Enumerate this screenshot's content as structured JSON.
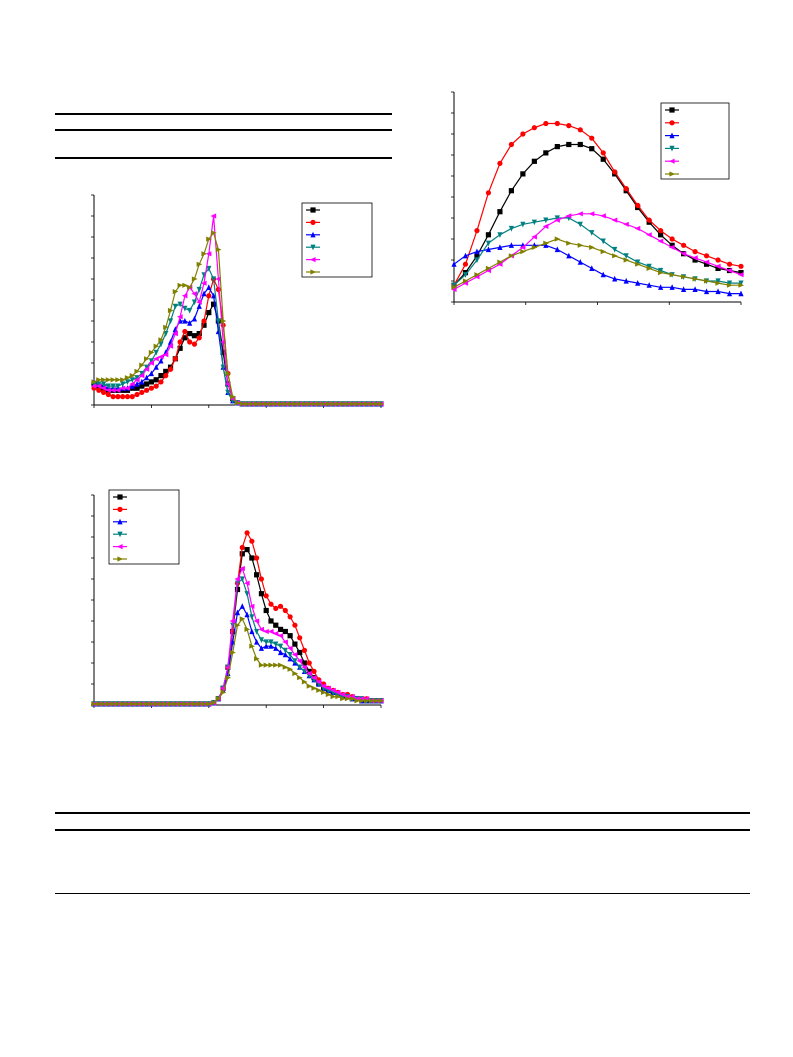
{
  "page": {
    "background": "#ffffff"
  },
  "tables": [
    {
      "name": "table-top",
      "rows": []
    },
    {
      "name": "table-bottom",
      "rows": []
    }
  ],
  "chart_data": [
    {
      "id": "chart-a",
      "type": "line",
      "title": "",
      "xlabel": "",
      "ylabel": "",
      "x": [
        0,
        1,
        2,
        3,
        4,
        5,
        6,
        7,
        8,
        9,
        10,
        11,
        12,
        13,
        14,
        15,
        16,
        17,
        18,
        19,
        20,
        21,
        22,
        23,
        24,
        25,
        26,
        27,
        28,
        29,
        30,
        31,
        32,
        33,
        34,
        35,
        36,
        37,
        38,
        39,
        40,
        41,
        42,
        43,
        44,
        45,
        46,
        47,
        48,
        49,
        50,
        51,
        52,
        53,
        54,
        55,
        56,
        57,
        58,
        59,
        60
      ],
      "xlim": [
        0,
        60
      ],
      "ylim": [
        0,
        100
      ],
      "grid": false,
      "legend": "top-right",
      "series": [
        {
          "color": "#000000",
          "marker": "square",
          "values": [
            10,
            9,
            8,
            7,
            7,
            7,
            7,
            7,
            8,
            8,
            9,
            10,
            11,
            12,
            14,
            16,
            18,
            22,
            27,
            32,
            34,
            33,
            34,
            38,
            44,
            48,
            40,
            25,
            10,
            3,
            1,
            0.5,
            0.5,
            0.5,
            0.5,
            0.5,
            0.5,
            0.5,
            0.5,
            0.5,
            0.5,
            0.5,
            0.5,
            0.5,
            0.5,
            0.5,
            0.5,
            0.5,
            0.5,
            0.5,
            0.5,
            0.5,
            0.5,
            0.5,
            0.5,
            0.5,
            0.5,
            0.5,
            0.5,
            0.5,
            0.5
          ]
        },
        {
          "color": "#ff0000",
          "marker": "circle",
          "values": [
            8,
            7,
            6,
            5,
            4,
            4,
            4,
            4,
            4,
            5,
            6,
            7,
            8,
            9,
            11,
            14,
            17,
            22,
            30,
            35,
            30,
            29,
            32,
            40,
            52,
            60,
            55,
            38,
            15,
            3,
            1,
            0.5,
            0.5,
            0.5,
            0.5,
            0.5,
            0.5,
            0.5,
            0.5,
            0.5,
            0.5,
            0.5,
            0.5,
            0.5,
            0.5,
            0.5,
            0.5,
            0.5,
            0.5,
            0.5,
            0.5,
            0.5,
            0.5,
            0.5,
            0.5,
            0.5,
            0.5,
            0.5,
            0.5,
            0.5,
            0.5
          ]
        },
        {
          "color": "#0000ff",
          "marker": "triangle-up",
          "values": [
            11,
            10,
            9,
            8,
            8,
            8,
            8,
            8,
            9,
            10,
            11,
            13,
            15,
            18,
            21,
            25,
            30,
            36,
            40,
            40,
            39,
            41,
            47,
            53,
            56,
            52,
            35,
            18,
            6,
            2,
            1,
            0.5,
            0.5,
            0.5,
            0.5,
            0.5,
            0.5,
            0.5,
            0.5,
            0.5,
            0.5,
            0.5,
            0.5,
            0.5,
            0.5,
            0.5,
            0.5,
            0.5,
            0.5,
            0.5,
            0.5,
            0.5,
            0.5,
            0.5,
            0.5,
            0.5,
            0.5,
            0.5,
            0.5,
            0.5,
            0.5
          ]
        },
        {
          "color": "#008080",
          "marker": "triangle-down",
          "values": [
            10,
            10,
            10,
            9,
            9,
            9,
            10,
            11,
            12,
            13,
            15,
            18,
            21,
            25,
            29,
            34,
            40,
            47,
            48,
            46,
            45,
            49,
            55,
            62,
            65,
            60,
            40,
            18,
            6,
            2,
            1,
            0.5,
            0.5,
            0.5,
            0.5,
            0.5,
            0.5,
            0.5,
            0.5,
            0.5,
            0.5,
            0.5,
            0.5,
            0.5,
            0.5,
            0.5,
            0.5,
            0.5,
            0.5,
            0.5,
            0.5,
            0.5,
            0.5,
            0.5,
            0.5,
            0.5,
            0.5,
            0.5,
            0.5,
            0.5,
            0.5
          ]
        },
        {
          "color": "#ff00ff",
          "marker": "triangle-left",
          "values": [
            9,
            9,
            8,
            7,
            7,
            7,
            8,
            8,
            10,
            12,
            14,
            17,
            20,
            22,
            23,
            24,
            28,
            34,
            42,
            52,
            56,
            53,
            49,
            58,
            72,
            90,
            60,
            30,
            10,
            3,
            1,
            0.5,
            0.5,
            0.5,
            0.5,
            0.5,
            0.5,
            0.5,
            0.5,
            0.5,
            0.5,
            0.5,
            0.5,
            0.5,
            0.5,
            0.5,
            0.5,
            0.5,
            0.5,
            0.5,
            0.5,
            0.5,
            0.5,
            0.5,
            0.5,
            0.5,
            0.5,
            0.5,
            0.5,
            0.5,
            0.5
          ]
        },
        {
          "color": "#808000",
          "marker": "triangle-right",
          "values": [
            11,
            12,
            12,
            12,
            12,
            12,
            12,
            13,
            14,
            16,
            19,
            22,
            25,
            28,
            31,
            37,
            45,
            54,
            57,
            57,
            56,
            60,
            67,
            72,
            79,
            82,
            74,
            40,
            15,
            4,
            1,
            0.5,
            0.5,
            0.5,
            0.5,
            0.5,
            0.5,
            0.5,
            0.5,
            0.5,
            0.5,
            0.5,
            0.5,
            0.5,
            0.5,
            0.5,
            0.5,
            0.5,
            0.5,
            0.5,
            0.5,
            0.5,
            0.5,
            0.5,
            0.5,
            0.5,
            0.5,
            0.5,
            0.5,
            0.5,
            0.5
          ]
        }
      ]
    },
    {
      "id": "chart-b",
      "type": "line",
      "title": "",
      "xlabel": "",
      "ylabel": "",
      "x": [
        0,
        1,
        2,
        3,
        4,
        5,
        6,
        7,
        8,
        9,
        10,
        11,
        12,
        13,
        14,
        15,
        16,
        17,
        18,
        19,
        20,
        21,
        22,
        23,
        24,
        25,
        26,
        27,
        28,
        29,
        30,
        31,
        32,
        33,
        34,
        35,
        36,
        37,
        38,
        39,
        40,
        41,
        42,
        43,
        44,
        45,
        46,
        47,
        48,
        49,
        50,
        51,
        52,
        53,
        54,
        55,
        56,
        57,
        58,
        59,
        60
      ],
      "xlim": [
        0,
        60
      ],
      "ylim": [
        0,
        100
      ],
      "grid": false,
      "legend": "top-left",
      "series": [
        {
          "color": "#000000",
          "marker": "square",
          "values": [
            0.5,
            0.5,
            0.5,
            0.5,
            0.5,
            0.5,
            0.5,
            0.5,
            0.5,
            0.5,
            0.5,
            0.5,
            0.5,
            0.5,
            0.5,
            0.5,
            0.5,
            0.5,
            0.5,
            0.5,
            0.5,
            0.5,
            0.5,
            0.5,
            0.5,
            1,
            3,
            8,
            18,
            35,
            55,
            72,
            74,
            70,
            62,
            53,
            45,
            40,
            38,
            36,
            35,
            33,
            29,
            25,
            20,
            16,
            13,
            10,
            8,
            7,
            6,
            5,
            4,
            4,
            3,
            3,
            2,
            2,
            2,
            2,
            2
          ]
        },
        {
          "color": "#ff0000",
          "marker": "circle",
          "values": [
            0.5,
            0.5,
            0.5,
            0.5,
            0.5,
            0.5,
            0.5,
            0.5,
            0.5,
            0.5,
            0.5,
            0.5,
            0.5,
            0.5,
            0.5,
            0.5,
            0.5,
            0.5,
            0.5,
            0.5,
            0.5,
            0.5,
            0.5,
            0.5,
            0.5,
            1,
            3,
            8,
            18,
            35,
            58,
            75,
            82,
            78,
            70,
            60,
            52,
            48,
            46,
            47,
            45,
            42,
            38,
            32,
            26,
            20,
            16,
            12,
            10,
            8,
            7,
            6,
            5,
            5,
            4,
            3,
            3,
            3,
            2,
            2,
            2
          ]
        },
        {
          "color": "#0000ff",
          "marker": "triangle-up",
          "values": [
            0.5,
            0.5,
            0.5,
            0.5,
            0.5,
            0.5,
            0.5,
            0.5,
            0.5,
            0.5,
            0.5,
            0.5,
            0.5,
            0.5,
            0.5,
            0.5,
            0.5,
            0.5,
            0.5,
            0.5,
            0.5,
            0.5,
            0.5,
            0.5,
            0.5,
            1,
            3,
            7,
            15,
            30,
            44,
            47,
            43,
            35,
            30,
            27,
            28,
            28,
            27,
            25,
            24,
            22,
            20,
            18,
            16,
            14,
            12,
            10,
            8,
            7,
            6,
            5,
            4,
            4,
            3,
            3,
            2,
            2,
            2,
            2,
            2
          ]
        },
        {
          "color": "#008080",
          "marker": "triangle-down",
          "values": [
            0.5,
            0.5,
            0.5,
            0.5,
            0.5,
            0.5,
            0.5,
            0.5,
            0.5,
            0.5,
            0.5,
            0.5,
            0.5,
            0.5,
            0.5,
            0.5,
            0.5,
            0.5,
            0.5,
            0.5,
            0.5,
            0.5,
            0.5,
            0.5,
            0.5,
            1,
            3,
            8,
            18,
            38,
            58,
            60,
            53,
            42,
            35,
            31,
            30,
            30,
            29,
            28,
            26,
            24,
            21,
            18,
            16,
            14,
            12,
            10,
            8,
            7,
            6,
            5,
            4,
            4,
            3,
            3,
            3,
            2,
            2,
            2,
            2
          ]
        },
        {
          "color": "#ff00ff",
          "marker": "triangle-left",
          "values": [
            0.5,
            0.5,
            0.5,
            0.5,
            0.5,
            0.5,
            0.5,
            0.5,
            0.5,
            0.5,
            0.5,
            0.5,
            0.5,
            0.5,
            0.5,
            0.5,
            0.5,
            0.5,
            0.5,
            0.5,
            0.5,
            0.5,
            0.5,
            0.5,
            0.5,
            1,
            3,
            8,
            18,
            40,
            60,
            65,
            58,
            47,
            40,
            36,
            35,
            35,
            34,
            33,
            30,
            27,
            24,
            21,
            18,
            15,
            13,
            11,
            9,
            8,
            7,
            6,
            5,
            4,
            4,
            3,
            3,
            3,
            2,
            2,
            2
          ]
        },
        {
          "color": "#808000",
          "marker": "triangle-right",
          "values": [
            0.5,
            0.5,
            0.5,
            0.5,
            0.5,
            0.5,
            0.5,
            0.5,
            0.5,
            0.5,
            0.5,
            0.5,
            0.5,
            0.5,
            0.5,
            0.5,
            0.5,
            0.5,
            0.5,
            0.5,
            0.5,
            0.5,
            0.5,
            0.5,
            0.5,
            1,
            3,
            6,
            13,
            25,
            38,
            41,
            36,
            28,
            22,
            19,
            19,
            19,
            19,
            19,
            18,
            17,
            15,
            13,
            11,
            9,
            8,
            7,
            6,
            5,
            4,
            4,
            3,
            3,
            3,
            2,
            2,
            2,
            2,
            2,
            2
          ]
        }
      ]
    },
    {
      "id": "chart-c",
      "type": "line",
      "title": "",
      "xlabel": "",
      "ylabel": "",
      "x": [
        0,
        1,
        2,
        3,
        4,
        5,
        6,
        7,
        8,
        9,
        10,
        11,
        12,
        13,
        14,
        15,
        16,
        17,
        18,
        19,
        20,
        21,
        22,
        23,
        24,
        25
      ],
      "xlim": [
        0,
        25
      ],
      "ylim": [
        0,
        100
      ],
      "grid": false,
      "legend": "top-right",
      "series": [
        {
          "color": "#000000",
          "marker": "square",
          "values": [
            8,
            14,
            22,
            32,
            43,
            53,
            61,
            67,
            71,
            74,
            75,
            75,
            73,
            68,
            61,
            53,
            45,
            38,
            32,
            27,
            23,
            20,
            18,
            16,
            15,
            14
          ]
        },
        {
          "color": "#ff0000",
          "marker": "circle",
          "values": [
            8,
            18,
            34,
            52,
            66,
            75,
            80,
            83,
            85,
            85,
            84,
            82,
            78,
            71,
            62,
            54,
            46,
            39,
            34,
            30,
            27,
            24,
            22,
            20,
            18,
            17
          ]
        },
        {
          "color": "#0000ff",
          "marker": "triangle-up",
          "values": [
            18,
            22,
            24,
            25,
            26,
            27,
            27,
            27,
            27,
            25,
            22,
            19,
            16,
            13,
            11,
            10,
            9,
            8,
            7,
            7,
            6,
            6,
            5,
            5,
            4,
            4
          ]
        },
        {
          "color": "#008080",
          "marker": "triangle-down",
          "values": [
            8,
            13,
            20,
            28,
            32,
            35,
            37,
            38,
            39,
            40,
            40,
            37,
            33,
            29,
            25,
            22,
            19,
            17,
            15,
            13,
            12,
            11,
            10,
            10,
            9,
            9
          ]
        },
        {
          "color": "#ff00ff",
          "marker": "triangle-left",
          "values": [
            6,
            9,
            12,
            15,
            18,
            22,
            26,
            31,
            36,
            39,
            41,
            42,
            42,
            41,
            39,
            37,
            35,
            32,
            29,
            26,
            23,
            21,
            19,
            17,
            15,
            13
          ]
        },
        {
          "color": "#808000",
          "marker": "triangle-right",
          "values": [
            7,
            10,
            13,
            16,
            19,
            22,
            24,
            26,
            28,
            30,
            28,
            27,
            26,
            24,
            22,
            20,
            18,
            16,
            14,
            13,
            12,
            11,
            10,
            9,
            8,
            8
          ]
        }
      ]
    }
  ]
}
